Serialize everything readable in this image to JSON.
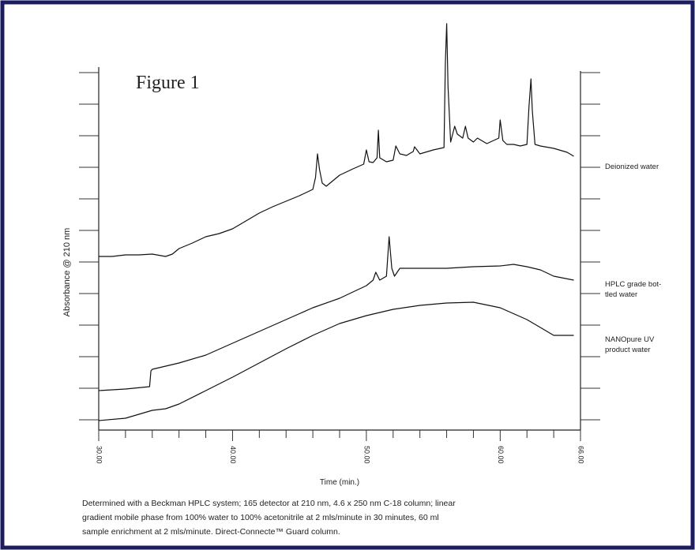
{
  "chart_data": {
    "type": "line",
    "title": "Figure 1",
    "xlabel": "Time (min.)",
    "ylabel": "Absorbance @ 210 nm",
    "xlim": [
      30,
      66
    ],
    "ylim": [
      0,
      520
    ],
    "xticks": [
      {
        "value": 30,
        "label": "30.00"
      },
      {
        "value": 40,
        "label": "40.00"
      },
      {
        "value": 50,
        "label": "50.00"
      },
      {
        "value": 60,
        "label": "60.00"
      },
      {
        "value": 66,
        "label": "66.00"
      }
    ],
    "xminor_ticks": [
      32,
      34,
      36,
      38,
      42,
      44,
      46,
      48,
      52,
      54,
      56,
      58,
      62,
      64
    ],
    "yticks": [
      13,
      53,
      93,
      133,
      173,
      213,
      253,
      293,
      333,
      373,
      413,
      453
    ],
    "color": "#111111",
    "series": [
      {
        "label_lines": [
          "Deionized water"
        ],
        "x": [
          30,
          31,
          32,
          33,
          34,
          35,
          35.5,
          36,
          37,
          38,
          39,
          40,
          41,
          42,
          43,
          44,
          45,
          46,
          46.2,
          46.35,
          46.5,
          46.7,
          47,
          48,
          49,
          49.8,
          50,
          50.2,
          50.5,
          50.8,
          50.9,
          51,
          51.5,
          52,
          52.2,
          52.5,
          53,
          53.5,
          53.6,
          54,
          55,
          55.8,
          55.9,
          56,
          56.1,
          56.3,
          56.6,
          56.8,
          57.2,
          57.4,
          57.6,
          58,
          58.3,
          59,
          59.9,
          60,
          60.2,
          60.5,
          61,
          61.5,
          62,
          62.15,
          62.3,
          62.4,
          62.6,
          63,
          64,
          65,
          65.5
        ],
        "values": [
          220,
          220,
          222,
          222,
          223,
          220,
          223,
          230,
          237,
          245,
          249,
          255,
          265,
          275,
          283,
          290,
          297,
          305,
          320,
          350,
          330,
          313,
          309,
          323,
          331,
          337,
          355,
          340,
          339,
          345,
          380,
          345,
          340,
          342,
          360,
          350,
          348,
          353,
          359,
          350,
          355,
          358,
          465,
          515,
          435,
          365,
          385,
          375,
          370,
          385,
          370,
          365,
          370,
          363,
          370,
          393,
          367,
          362,
          362,
          360,
          362,
          410,
          445,
          405,
          362,
          360,
          357,
          352,
          347
        ]
      },
      {
        "label_lines": [
          "HPLC grade bot-",
          "tled water"
        ],
        "x": [
          30,
          32,
          33.8,
          33.9,
          34,
          36,
          38,
          40,
          42,
          44,
          46,
          48,
          49,
          50,
          50.5,
          50.7,
          51,
          51.5,
          51.7,
          51.9,
          52.1,
          52.5,
          54,
          56,
          58,
          60,
          61,
          62,
          63,
          64,
          65.5
        ],
        "values": [
          50,
          52,
          55,
          75,
          77,
          85,
          95,
          110,
          125,
          140,
          155,
          167,
          175,
          183,
          190,
          200,
          190,
          195,
          245,
          205,
          195,
          205,
          205,
          205,
          207,
          208,
          210,
          207,
          203,
          195,
          190
        ]
      },
      {
        "label_lines": [
          "NANOpure UV",
          "product water"
        ],
        "x": [
          30,
          32,
          34,
          35,
          36,
          38,
          40,
          42,
          44,
          46,
          48,
          50,
          52,
          54,
          56,
          58,
          60,
          62,
          63,
          64,
          65.5
        ],
        "values": [
          12,
          15,
          25,
          27,
          33,
          50,
          67,
          85,
          103,
          120,
          135,
          145,
          153,
          158,
          161,
          162,
          155,
          140,
          130,
          120,
          120
        ]
      }
    ],
    "caption_lines": [
      "Determined with a Beckman HPLC system; 165 detector at 210 nm, 4.6 x 250 nm C-18 column; linear",
      "gradient mobile phase from 100% water to 100% acetonitrile at 2 mls/minute in 30 minutes, 60 ml",
      "sample enrichment at 2 mls/minute. Direct-Connecte™ Guard column."
    ]
  }
}
